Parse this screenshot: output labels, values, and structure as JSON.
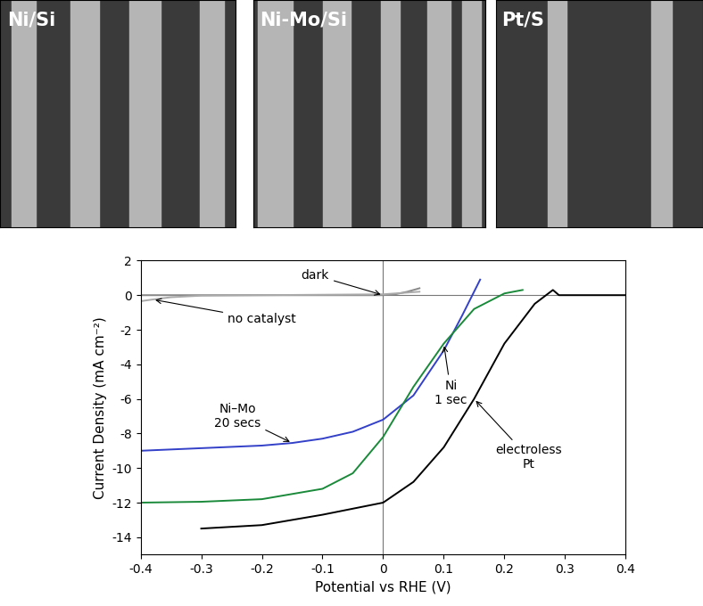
{
  "image_panels": {
    "labels": [
      "Ni/Si",
      "Ni-Mo/Si",
      "Pt/S"
    ]
  },
  "chart_data": {
    "type": "line",
    "x_label": "Potential vs RHE (V)",
    "y_label": "Current Density (mA cm⁻²)",
    "xlim": [
      -0.4,
      0.4
    ],
    "xticks": [
      -0.4,
      -0.3,
      -0.2,
      -0.1,
      0,
      0.1,
      0.2,
      0.3,
      0.4
    ],
    "ylim": [
      -15,
      2
    ],
    "yticks": [
      -14,
      -12,
      -10,
      -8,
      -6,
      -4,
      -2,
      0,
      2
    ],
    "grid": false,
    "series": [
      {
        "name": "dark",
        "color": "#888888",
        "x": [
          -0.4,
          -0.2,
          0,
          0.02,
          0.04,
          0.06
        ],
        "values": [
          0,
          0,
          0,
          0.05,
          0.2,
          0.4
        ]
      },
      {
        "name": "no catalyst",
        "color": "#aaaaaa",
        "x": [
          -0.4,
          -0.38,
          -0.35,
          -0.3,
          -0.2,
          0,
          0.06
        ],
        "values": [
          -0.35,
          -0.25,
          -0.12,
          -0.03,
          0,
          0.05,
          0.2
        ]
      },
      {
        "name": "Ni–Mo\n20 secs",
        "color": "#3340c8",
        "x": [
          -0.4,
          -0.3,
          -0.2,
          -0.15,
          -0.1,
          -0.05,
          0,
          0.05,
          0.1,
          0.13,
          0.16
        ],
        "values": [
          -9.0,
          -8.85,
          -8.7,
          -8.55,
          -8.3,
          -7.9,
          -7.2,
          -5.8,
          -3.2,
          -1.2,
          0.9
        ]
      },
      {
        "name": "Ni\n1 sec",
        "color": "#1a8a3a",
        "x": [
          -0.4,
          -0.3,
          -0.2,
          -0.1,
          -0.05,
          0,
          0.05,
          0.1,
          0.15,
          0.2,
          0.23
        ],
        "values": [
          -12.0,
          -11.95,
          -11.8,
          -11.2,
          -10.3,
          -8.2,
          -5.3,
          -2.8,
          -0.8,
          0.1,
          0.3
        ]
      },
      {
        "name": "electroless\nPt",
        "color": "#000000",
        "x": [
          -0.3,
          -0.2,
          -0.1,
          0,
          0.05,
          0.1,
          0.15,
          0.2,
          0.25,
          0.28,
          0.29,
          0.4
        ],
        "values": [
          -13.5,
          -13.3,
          -12.7,
          -12.0,
          -10.8,
          -8.8,
          -6.0,
          -2.8,
          -0.5,
          0.3,
          0,
          0
        ]
      }
    ]
  }
}
